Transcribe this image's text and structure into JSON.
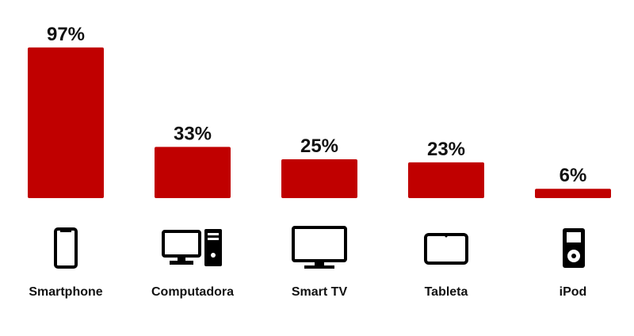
{
  "chart_data": {
    "type": "bar",
    "categories": [
      "Smartphone",
      "Computadora",
      "Smart TV",
      "Tableta",
      "iPod"
    ],
    "values": [
      97,
      33,
      25,
      23,
      6
    ],
    "value_labels": [
      "97%",
      "33%",
      "25%",
      "23%",
      "6%"
    ],
    "color": "#c00000"
  }
}
